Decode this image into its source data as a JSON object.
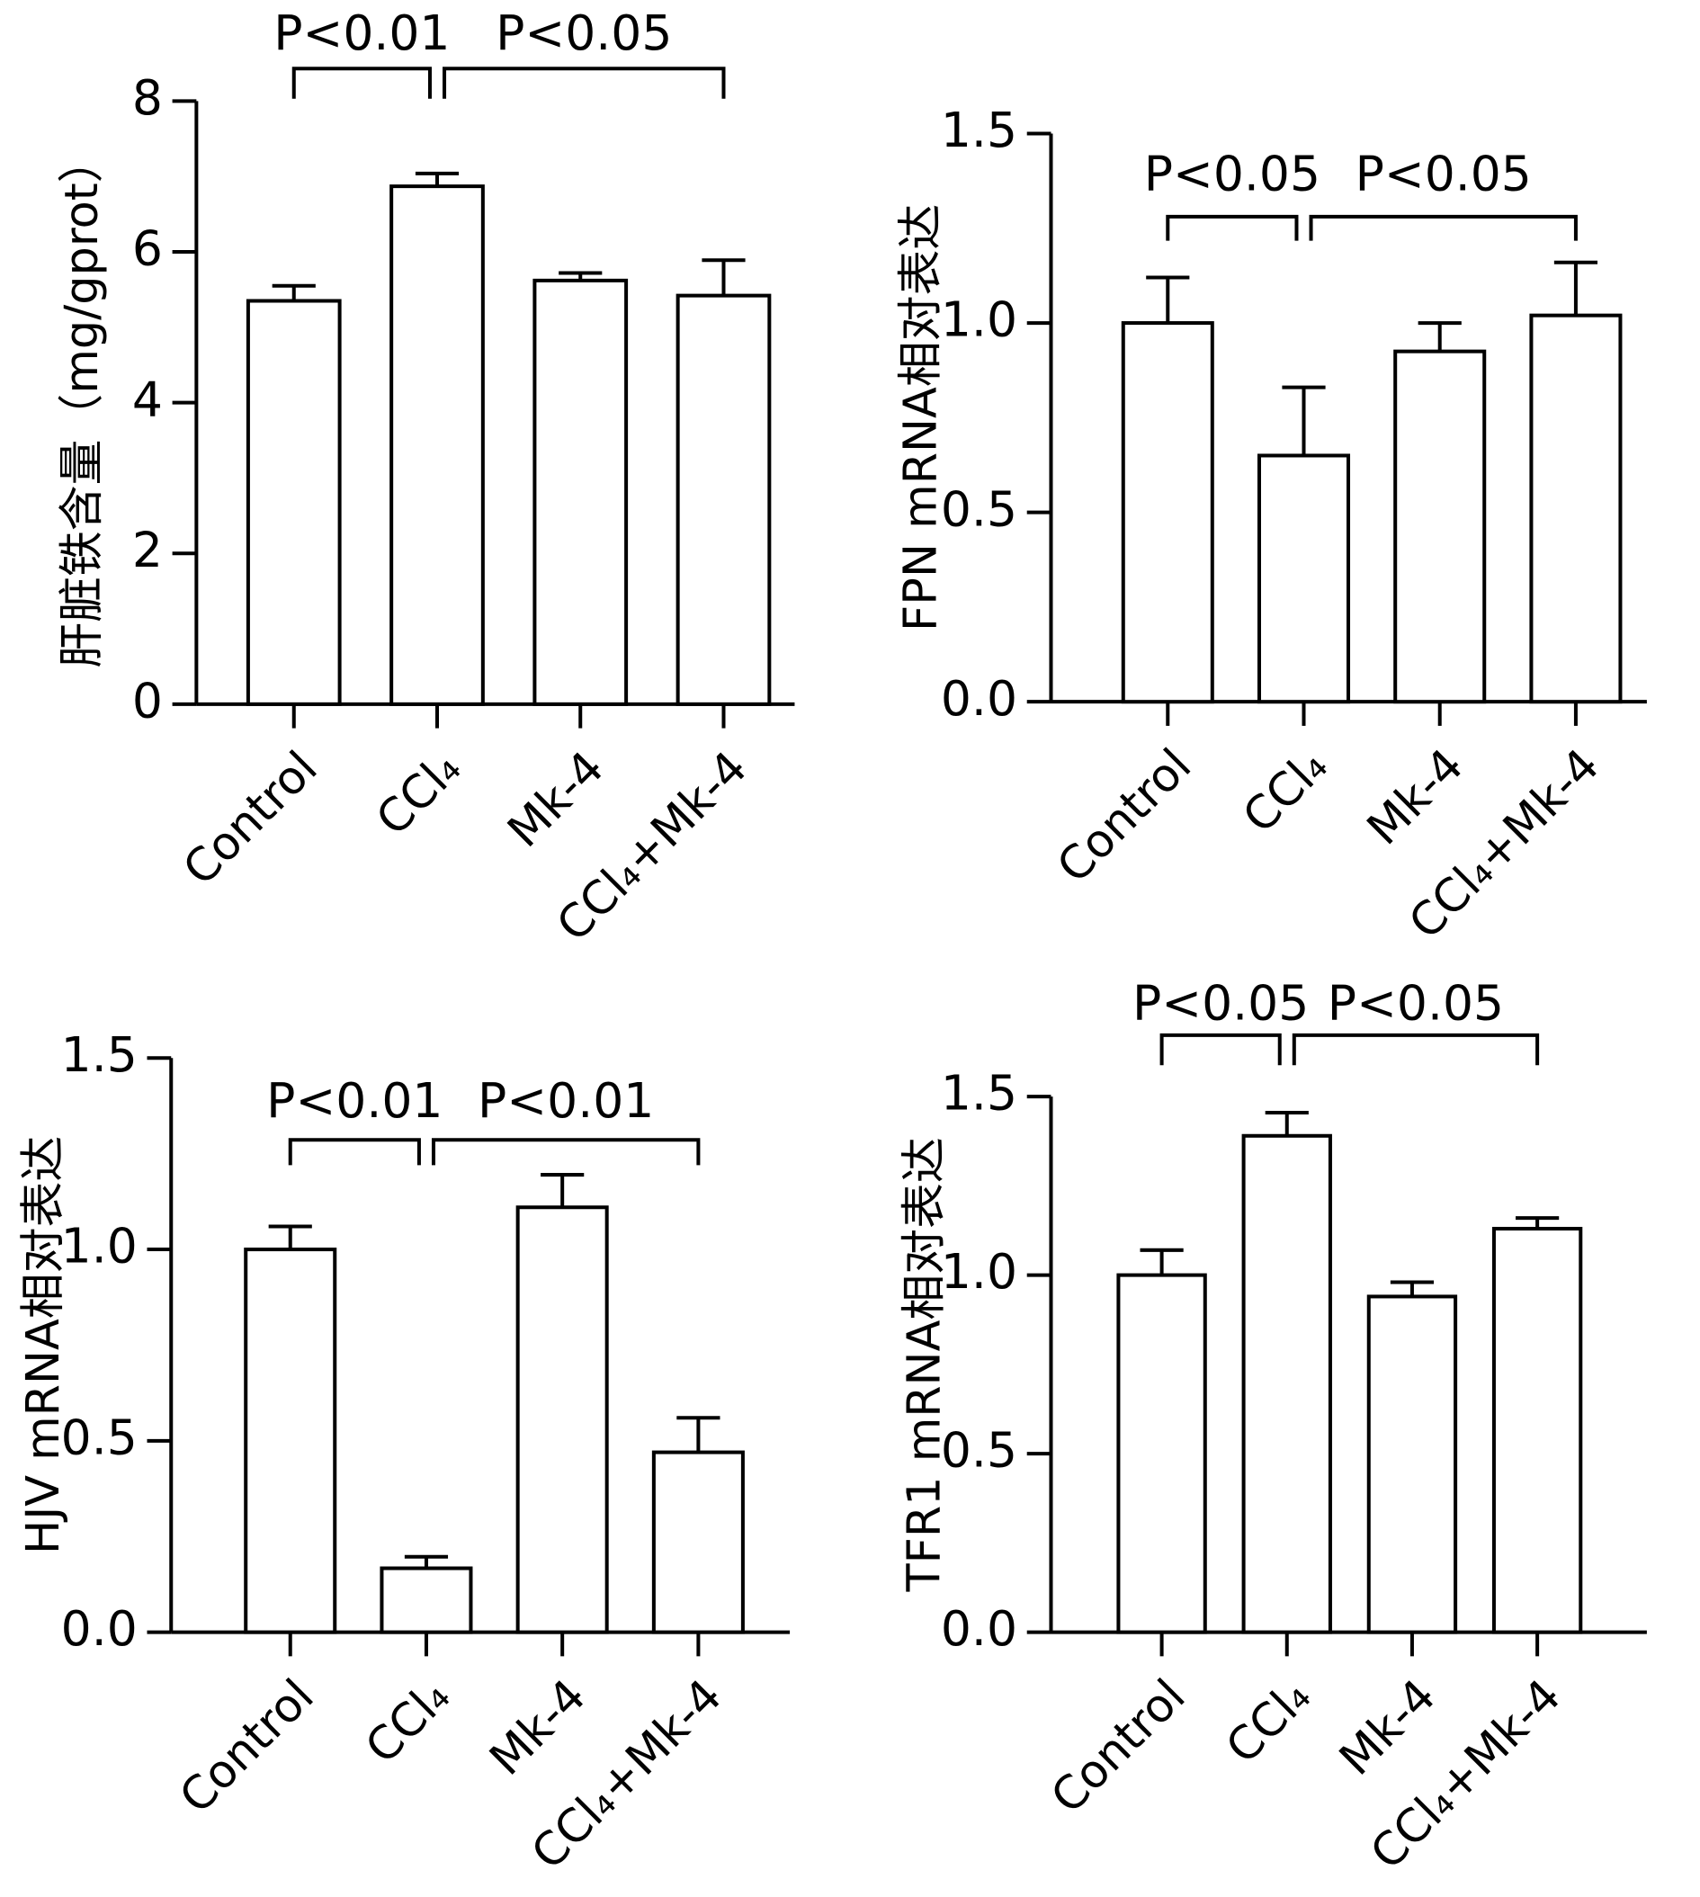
{
  "chart_data": [
    {
      "type": "bar",
      "ylabel": "肝脏铁含量（mg/gprot）",
      "categories": [
        "Control",
        "CCl₄",
        "Mk-4",
        "CCl₄+Mk-4"
      ],
      "values": [
        5.35,
        6.87,
        5.62,
        5.42
      ],
      "errors": [
        0.2,
        0.17,
        0.1,
        0.47
      ],
      "color": "#ffffff",
      "ylim": [
        0,
        8
      ],
      "yticks": [
        0,
        2,
        4,
        6,
        8
      ],
      "grid": false,
      "annotations": [
        "P<0.01",
        "P<0.05"
      ]
    },
    {
      "type": "bar",
      "ylabel": "FPN mRNA相对表达",
      "categories": [
        "Control",
        "CCl₄",
        "Mk-4",
        "CCl₄+Mk-4"
      ],
      "values": [
        1.0,
        0.65,
        0.925,
        1.02
      ],
      "errors": [
        0.12,
        0.18,
        0.075,
        0.14
      ],
      "color": "#ffffff",
      "ylim": [
        0,
        1.5
      ],
      "yticks": [
        {
          "value": 0,
          "label": "0.0"
        },
        {
          "value": 0.5,
          "label": "0.5"
        },
        {
          "value": 1,
          "label": "1.0"
        },
        {
          "value": 1.5,
          "label": "1.5"
        }
      ],
      "grid": false,
      "annotations": [
        "P<0.05",
        "P<0.05"
      ]
    },
    {
      "type": "bar",
      "ylabel": "HJV mRNA相对表达",
      "categories": [
        "Control",
        "CCl₄",
        "Mk-4",
        "CCl₄+Mk-4"
      ],
      "values": [
        1.0,
        0.167,
        1.11,
        0.47
      ],
      "errors": [
        0.06,
        0.03,
        0.085,
        0.09
      ],
      "color": "#ffffff",
      "ylim": [
        0,
        1.5
      ],
      "yticks": [
        {
          "value": 0,
          "label": "0.0"
        },
        {
          "value": 0.5,
          "label": "0.5"
        },
        {
          "value": 1,
          "label": "1.0"
        },
        {
          "value": 1.5,
          "label": "1.5"
        }
      ],
      "grid": false,
      "annotations": [
        "P<0.01",
        "P<0.01"
      ]
    },
    {
      "type": "bar",
      "ylabel": "TFR1 mRNA相对表达",
      "categories": [
        "Control",
        "CCl₄",
        "Mk-4",
        "CCl₄+Mk-4"
      ],
      "values": [
        1.0,
        1.39,
        0.94,
        1.13
      ],
      "errors": [
        0.07,
        0.065,
        0.04,
        0.03
      ],
      "color": "#ffffff",
      "ylim": [
        0,
        1.5
      ],
      "yticks": [
        {
          "value": 0,
          "label": "0.0"
        },
        {
          "value": 0.5,
          "label": "0.5"
        },
        {
          "value": 1,
          "label": "1.0"
        },
        {
          "value": 1.5,
          "label": "1.5"
        }
      ],
      "grid": false,
      "annotations": [
        "P<0.05",
        "P<0.05"
      ]
    }
  ]
}
